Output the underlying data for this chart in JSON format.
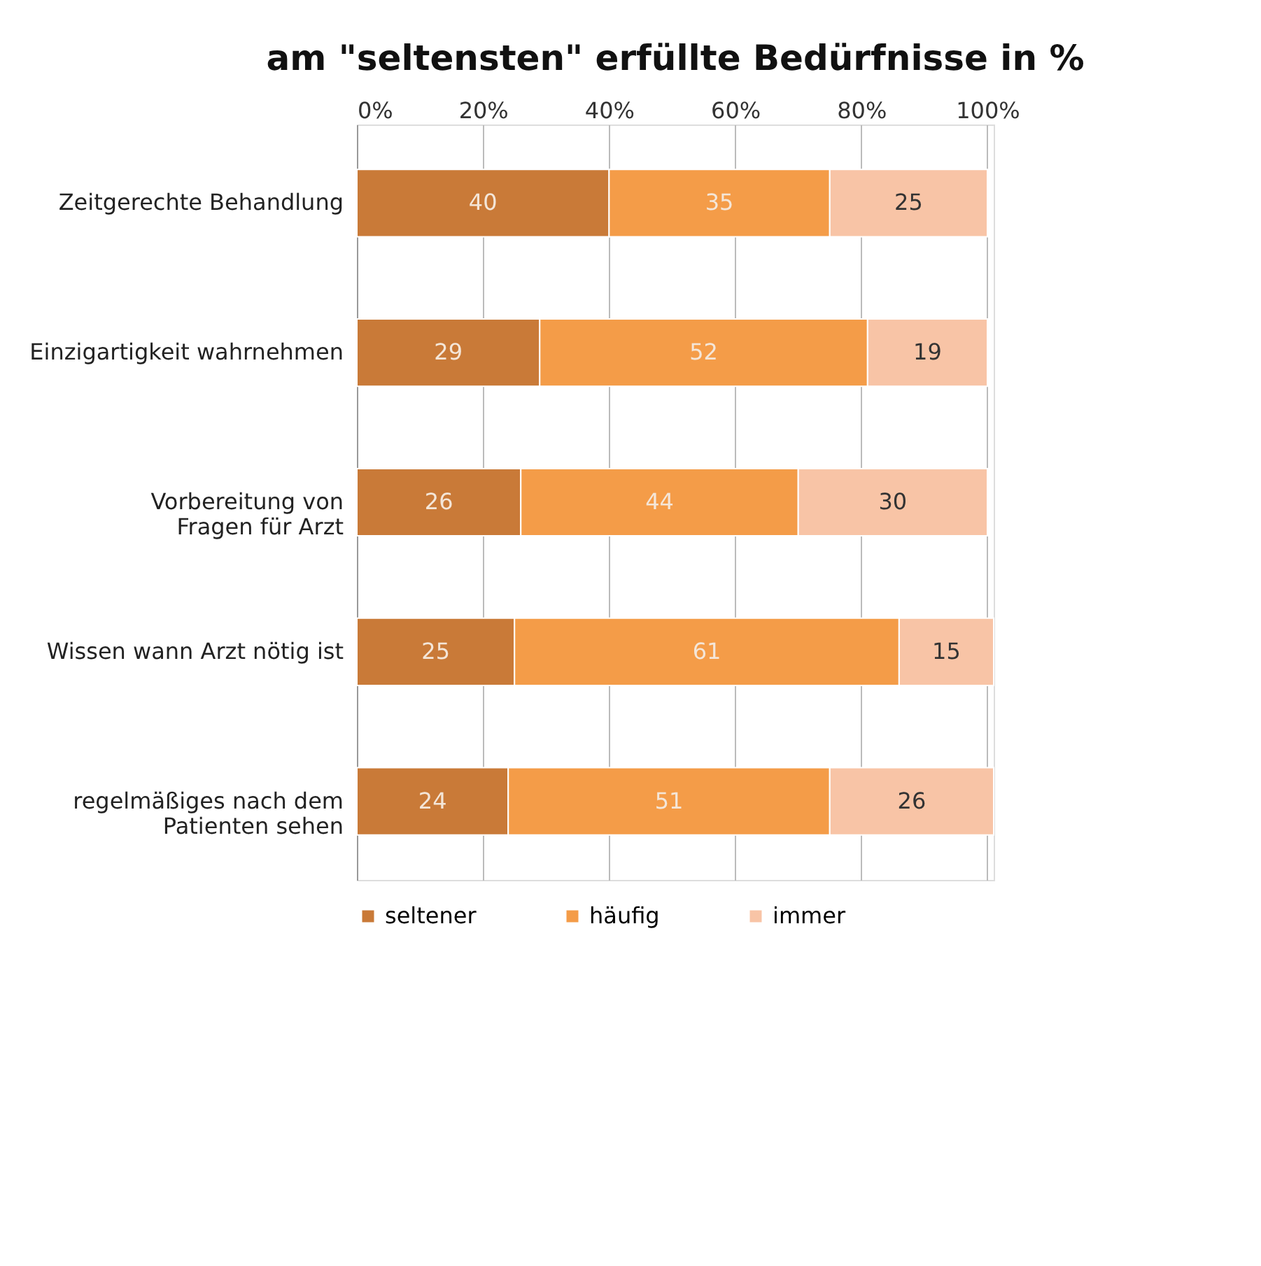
{
  "chart_data": {
    "type": "bar",
    "orientation": "horizontal",
    "stacked": true,
    "title": "am \"seltensten\" erfüllte Bedürfnisse in %",
    "categories": [
      "Zeitgerechte Behandlung",
      "Einzigartigkeit wahrnehmen",
      "Vorbereitung von Fragen für Arzt",
      "Wissen wann Arzt nötig ist",
      "regelmäßiges nach dem Patienten sehen"
    ],
    "series": [
      {
        "name": "seltener",
        "color": "#c97a38",
        "values": [
          40,
          29,
          26,
          25,
          24
        ]
      },
      {
        "name": "häufig",
        "color": "#f49c48",
        "values": [
          35,
          52,
          44,
          61,
          51
        ]
      },
      {
        "name": "immer",
        "color": "#f8c4a6",
        "values": [
          25,
          19,
          30,
          15,
          26
        ]
      }
    ],
    "data_labels": true,
    "xlim": [
      0,
      101
    ],
    "xticks": [
      {
        "value": 0,
        "label": "0%"
      },
      {
        "value": 20,
        "label": "20%"
      },
      {
        "value": 40,
        "label": "40%"
      },
      {
        "value": 60,
        "label": "60%"
      },
      {
        "value": 80,
        "label": "80%"
      },
      {
        "value": 100,
        "label": "100%"
      }
    ],
    "grid": "x",
    "legend": "bottom"
  }
}
